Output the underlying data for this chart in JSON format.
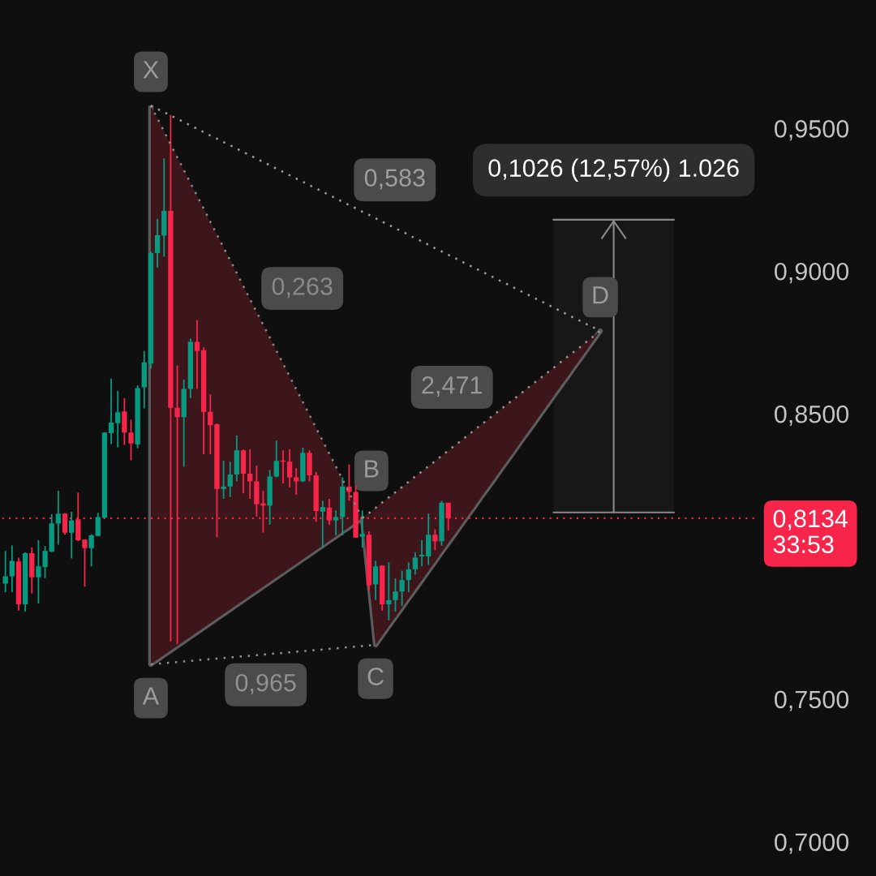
{
  "chart_data": {
    "type": "candlestick",
    "categories": [
      null,
      null,
      null,
      null,
      null,
      null,
      null,
      null,
      null,
      null,
      null,
      null,
      null,
      null,
      null,
      null,
      null,
      null,
      null,
      null,
      null,
      null,
      null,
      null,
      null,
      null,
      null,
      null,
      null,
      null,
      null,
      null,
      null,
      null,
      null,
      null,
      null,
      null,
      null,
      null,
      null,
      null,
      null,
      null,
      null,
      null,
      null,
      null,
      null,
      null,
      null,
      null,
      null,
      null,
      null,
      null,
      null,
      null,
      null,
      null,
      null,
      null,
      null,
      null,
      null,
      null,
      null,
      null,
      null,
      null,
      null,
      null,
      null,
      null,
      null,
      null,
      null,
      null,
      null,
      null,
      null,
      null,
      null,
      null,
      null,
      null,
      null,
      null,
      null,
      null,
      null,
      null,
      null,
      null,
      null,
      null,
      null,
      null,
      null,
      null,
      null,
      null,
      null,
      null,
      null,
      null,
      null,
      null,
      null,
      null,
      null,
      null,
      null,
      null
    ],
    "ohlc": [
      [
        0.7905,
        0.8019,
        0.7875,
        0.793
      ],
      [
        0.793,
        0.8039,
        0.7875,
        0.7984
      ],
      [
        0.7982,
        0.7996,
        0.781,
        0.7832
      ],
      [
        0.7832,
        0.8014,
        0.7807,
        0.8011
      ],
      [
        0.8011,
        0.8031,
        0.787,
        0.7927
      ],
      [
        0.7927,
        0.8057,
        0.7835,
        0.7965
      ],
      [
        0.7963,
        0.8036,
        0.7924,
        0.8019
      ],
      [
        0.8017,
        0.8148,
        0.8015,
        0.8116
      ],
      [
        0.8115,
        0.823,
        0.8041,
        0.815
      ],
      [
        0.815,
        0.8152,
        0.8076,
        0.8083
      ],
      [
        0.8083,
        0.8156,
        0.7993,
        0.8126
      ],
      [
        0.813,
        0.8224,
        0.8053,
        0.8057
      ],
      [
        0.8059,
        0.8059,
        0.7894,
        0.8029
      ],
      [
        0.8029,
        0.8078,
        0.7965,
        0.8074
      ],
      [
        0.8072,
        0.8153,
        0.8072,
        0.8138
      ],
      [
        0.8136,
        0.8435,
        0.8134,
        0.8434
      ],
      [
        0.8432,
        0.8623,
        0.8394,
        0.8469
      ],
      [
        0.8467,
        0.858,
        0.8382,
        0.8505
      ],
      [
        0.8508,
        0.8554,
        0.8391,
        0.8434
      ],
      [
        0.8434,
        0.8479,
        0.8337,
        0.8396
      ],
      [
        0.8393,
        0.86,
        0.8379,
        0.859
      ],
      [
        0.8593,
        0.872,
        0.8519,
        0.868
      ],
      [
        0.8676,
        0.9069,
        0.8657,
        0.9063
      ],
      [
        0.9063,
        0.9183,
        0.9012,
        0.9126
      ],
      [
        0.9124,
        0.9395,
        0.905,
        0.9211
      ],
      [
        0.9211,
        0.9547,
        0.7702,
        0.8521
      ],
      [
        0.8521,
        0.8669,
        0.7693,
        0.8488
      ],
      [
        0.8488,
        0.8619,
        0.8314,
        0.8587
      ],
      [
        0.8587,
        0.8764,
        0.8555,
        0.8752
      ],
      [
        0.8752,
        0.8828,
        0.8587,
        0.872
      ],
      [
        0.8723,
        0.8733,
        0.8358,
        0.8507
      ],
      [
        0.8507,
        0.8568,
        0.8358,
        0.846
      ],
      [
        0.8463,
        0.8466,
        0.8067,
        0.8236
      ],
      [
        0.8236,
        0.8335,
        0.8202,
        0.8245
      ],
      [
        0.8245,
        0.8332,
        0.8208,
        0.8287
      ],
      [
        0.8287,
        0.8424,
        0.8263,
        0.8372
      ],
      [
        0.8372,
        0.8375,
        0.8221,
        0.829
      ],
      [
        0.829,
        0.8375,
        0.8202,
        0.8263
      ],
      [
        0.8263,
        0.8318,
        0.814,
        0.8183
      ],
      [
        0.8186,
        0.823,
        0.8083,
        0.8178
      ],
      [
        0.8178,
        0.8303,
        0.8111,
        0.828
      ],
      [
        0.828,
        0.8406,
        0.8277,
        0.8335
      ],
      [
        0.8336,
        0.8372,
        0.8256,
        0.8332
      ],
      [
        0.8332,
        0.8375,
        0.8242,
        0.8277
      ],
      [
        0.8277,
        0.8309,
        0.8216,
        0.8263
      ],
      [
        0.8263,
        0.8381,
        0.8261,
        0.8363
      ],
      [
        0.8363,
        0.8372,
        0.8263,
        0.8284
      ],
      [
        0.8284,
        0.8296,
        0.8121,
        0.8159
      ],
      [
        0.8157,
        0.8195,
        0.8031,
        0.8173
      ],
      [
        0.8171,
        0.8202,
        0.8111,
        0.8126
      ],
      [
        0.8126,
        0.8161,
        0.8074,
        0.8138
      ],
      [
        0.8138,
        0.8277,
        0.8074,
        0.8245
      ],
      [
        0.8245,
        0.8322,
        0.8195,
        0.8226
      ],
      [
        0.8226,
        0.8249,
        0.8066,
        0.8066
      ],
      [
        0.8069,
        0.8161,
        0.8031,
        0.8079
      ],
      [
        0.8076,
        0.8088,
        0.788,
        0.7899
      ],
      [
        0.7902,
        0.7984,
        0.7847,
        0.7965
      ],
      [
        0.7968,
        0.7968,
        0.781,
        0.7832
      ],
      [
        0.7832,
        0.7979,
        0.7776,
        0.7847
      ],
      [
        0.7847,
        0.7923,
        0.7806,
        0.7877
      ],
      [
        0.7877,
        0.795,
        0.7826,
        0.7917
      ],
      [
        0.7917,
        0.7979,
        0.7875,
        0.7955
      ],
      [
        0.7955,
        0.8015,
        0.7936,
        0.7996
      ],
      [
        0.8,
        0.8057,
        0.7965,
        0.8006
      ],
      [
        0.8,
        0.815,
        0.797,
        0.8076
      ],
      [
        0.8076,
        0.8095,
        0.8022,
        0.8053
      ],
      [
        0.8053,
        0.8195,
        0.8038,
        0.8188
      ],
      [
        0.8188,
        0.8188,
        0.8091,
        0.8134
      ],
      null,
      null,
      null,
      null,
      null,
      null,
      null,
      null,
      null,
      null,
      null,
      null,
      null,
      null,
      null,
      null,
      null,
      null,
      null,
      null,
      null,
      null,
      null,
      null,
      null,
      null,
      null,
      null,
      null,
      null,
      null,
      null,
      null,
      null,
      null,
      null,
      null,
      null,
      null,
      null,
      null,
      null,
      null,
      null,
      null,
      null
    ],
    "colors": [
      "#089981",
      "#089981",
      "#f7254a",
      "#089981",
      "#f7254a",
      "#089981",
      "#089981",
      "#089981",
      "#089981",
      "#f7254a",
      "#089981",
      "#f7254a",
      "#f7254a",
      "#089981",
      "#089981",
      "#089981",
      "#089981",
      "#089981",
      "#f7254a",
      "#f7254a",
      "#089981",
      "#089981",
      "#089981",
      "#089981",
      "#089981",
      "#f7254a",
      "#f7254a",
      "#089981",
      "#089981",
      "#f7254a",
      "#f7254a",
      "#f7254a",
      "#f7254a",
      "#089981",
      "#089981",
      "#089981",
      "#f7254a",
      "#f7254a",
      "#f7254a",
      "#f7254a",
      "#089981",
      "#089981",
      "#f7254a",
      "#f7254a",
      "#f7254a",
      "#089981",
      "#f7254a",
      "#f7254a",
      "#089981",
      "#f7254a",
      "#089981",
      "#089981",
      "#f7254a",
      "#f7254a",
      "#089981",
      "#f7254a",
      "#089981",
      "#f7254a",
      "#089981",
      "#089981",
      "#089981",
      "#089981",
      "#089981",
      "#089981",
      "#089981",
      "#f7254a",
      "#089981",
      "#f7254a",
      null,
      null,
      null,
      null,
      null,
      null,
      null,
      null,
      null,
      null,
      null,
      null,
      null,
      null,
      null,
      null,
      null,
      null,
      null,
      null,
      null,
      null,
      null,
      null,
      null,
      null,
      null,
      null,
      null,
      null,
      null,
      null,
      null,
      null,
      null,
      null,
      null,
      null,
      null,
      null,
      null,
      null,
      null,
      null,
      null,
      null
    ],
    "series": [
      {
        "type": "bar",
        "color": "#5c5c5c",
        "base": [
          null,
          null,
          null,
          null,
          null,
          null,
          null,
          null,
          null,
          null,
          null,
          null,
          null,
          null,
          null,
          null,
          null,
          null,
          null,
          null,
          null,
          null,
          0.7622,
          null,
          null,
          null,
          null,
          null,
          null,
          null,
          null,
          null,
          null,
          null,
          null,
          null,
          null,
          null,
          null,
          null,
          null,
          null,
          null,
          null,
          null,
          null,
          null,
          null,
          null,
          null,
          null,
          null,
          null,
          null,
          null,
          null,
          null,
          null,
          null,
          null,
          null,
          null,
          null,
          null,
          null,
          null,
          null,
          null,
          null,
          null,
          null,
          null,
          null,
          null,
          null,
          null,
          null,
          null,
          null,
          null,
          null,
          null,
          null,
          null,
          null,
          null,
          null,
          null,
          null,
          null,
          null,
          null,
          null,
          null,
          null,
          null,
          null,
          null,
          null,
          null,
          null,
          null,
          null,
          null,
          null,
          null,
          null,
          null,
          null,
          null,
          null,
          null,
          null,
          null
        ],
        "values": [
          null,
          null,
          null,
          null,
          null,
          null,
          null,
          null,
          null,
          null,
          null,
          null,
          null,
          null,
          null,
          null,
          null,
          null,
          null,
          null,
          null,
          null,
          0.1958,
          null,
          null,
          null,
          null,
          null,
          null,
          null,
          null,
          null,
          null,
          null,
          null,
          null,
          null,
          null,
          null,
          null,
          null,
          null,
          null,
          null,
          null,
          null,
          null,
          null,
          null,
          null,
          null,
          null,
          null,
          null,
          null,
          null,
          null,
          null,
          null,
          null,
          null,
          null,
          null,
          null,
          null,
          null,
          null,
          null,
          null,
          null,
          null,
          null,
          null,
          null,
          null,
          null,
          null,
          null,
          null,
          null,
          null,
          null,
          null,
          null,
          null,
          null,
          null,
          null,
          null,
          null,
          null,
          null,
          null,
          null,
          null,
          null,
          null,
          null,
          null,
          null,
          null,
          null,
          null,
          null,
          null,
          null,
          null,
          null,
          null,
          null,
          null,
          null,
          null,
          null
        ],
        "value_labels": [
          null,
          null,
          null,
          null,
          null,
          null,
          null,
          null,
          null,
          null,
          null,
          null,
          null,
          null,
          null,
          null,
          null,
          null,
          null,
          null,
          null,
          null,
          "X",
          null,
          null,
          null,
          null,
          null,
          null,
          null,
          null,
          null,
          null,
          null,
          null,
          null,
          null,
          null,
          null,
          null,
          null,
          null,
          null,
          null,
          null,
          null,
          null,
          null,
          null,
          null,
          null,
          null,
          null,
          null,
          null,
          null,
          null,
          null,
          null,
          null,
          null,
          null,
          null,
          null,
          null,
          null,
          null,
          null,
          null,
          null,
          null,
          null,
          null,
          null,
          null,
          null,
          null,
          null,
          null,
          null,
          null,
          null,
          null,
          null,
          null,
          null,
          null,
          null,
          null,
          null,
          null,
          null,
          null,
          null,
          null,
          null,
          null,
          null,
          null,
          null,
          null,
          null,
          null,
          null,
          null,
          null,
          null,
          null,
          null,
          null,
          null,
          null,
          null,
          null
        ]
      },
      {
        "type": "line",
        "name": "0,263",
        "color": "#8a8a8a",
        "line_style": "dotted",
        "values": [
          null,
          null,
          null,
          null,
          null,
          null,
          null,
          null,
          null,
          null,
          null,
          null,
          null,
          null,
          null,
          null,
          null,
          null,
          null,
          null,
          null,
          null,
          0.958,
          0.9535,
          0.949,
          0.9444,
          0.9399,
          0.9354,
          0.9309,
          0.9264,
          0.9219,
          0.9173,
          0.9128,
          0.9083,
          0.9038,
          0.8993,
          0.8947,
          0.8902,
          0.8857,
          0.8812,
          0.8767,
          0.8721,
          0.8676,
          0.8631,
          0.8586,
          0.8541,
          0.8496,
          0.845,
          0.8405,
          0.836,
          0.8315,
          0.827,
          0.8224,
          0.8179,
          0.8134,
          null,
          null,
          null,
          null,
          null,
          null,
          null,
          null,
          null,
          null,
          null,
          null,
          null,
          null,
          null,
          null,
          null,
          null,
          null,
          null,
          null,
          null,
          null,
          null,
          null,
          null,
          null,
          null,
          null,
          null,
          null,
          null,
          null,
          null,
          null,
          null,
          null,
          null,
          null,
          null,
          null,
          null,
          null,
          null,
          null,
          null,
          null,
          null,
          null,
          null,
          null,
          null,
          null,
          null,
          null,
          null,
          null,
          null,
          null
        ],
        "upper": [
          null,
          null,
          null,
          null,
          null,
          null,
          null,
          null,
          null,
          null,
          null,
          null,
          null,
          null,
          null,
          null,
          null,
          null,
          null,
          null,
          null,
          null,
          0.958,
          0.9535,
          0.949,
          0.9444,
          0.9399,
          0.9354,
          0.9309,
          0.9264,
          0.9219,
          0.9173,
          0.9128,
          0.9083,
          0.9038,
          0.8993,
          0.8947,
          0.8902,
          0.8857,
          0.8812,
          0.8767,
          0.8721,
          0.8676,
          0.8631,
          0.8586,
          0.8541,
          0.8496,
          0.845,
          0.8405,
          0.836,
          0.8315,
          0.827,
          0.8224,
          0.8179,
          0.8134,
          null,
          null,
          null,
          null,
          null,
          null,
          null,
          null,
          null,
          null,
          null,
          null,
          null,
          null,
          null,
          null,
          null,
          null,
          null,
          null,
          null,
          null,
          null,
          null,
          null,
          null,
          null,
          null,
          null,
          null,
          null,
          null,
          null,
          null,
          null,
          null,
          null,
          null,
          null,
          null,
          null,
          null,
          null,
          null,
          null,
          null,
          null,
          null,
          null,
          null,
          null,
          null,
          null,
          null,
          null,
          null,
          null,
          null,
          null
        ],
        "lower": [
          null,
          null,
          null,
          null,
          null,
          null,
          null,
          null,
          null,
          null,
          null,
          null,
          null,
          null,
          null,
          null,
          null,
          null,
          null,
          null,
          null,
          null,
          0.7622,
          0.7638,
          0.7654,
          0.767,
          0.7686,
          0.7702,
          0.7718,
          0.7734,
          0.775,
          0.7766,
          0.7782,
          0.7798,
          0.7814,
          0.783,
          0.7846,
          0.7862,
          0.7878,
          0.7894,
          0.791,
          0.7926,
          0.7942,
          0.7958,
          0.7974,
          0.799,
          0.8006,
          0.8022,
          0.8038,
          0.8054,
          0.807,
          0.8086,
          0.8102,
          0.8118,
          0.8134,
          null,
          null,
          null,
          null,
          null,
          null,
          null,
          null,
          null,
          null,
          null,
          null,
          null,
          null,
          null,
          null,
          null,
          null,
          null,
          null,
          null,
          null,
          null,
          null,
          null,
          null,
          null,
          null,
          null,
          null,
          null,
          null,
          null,
          null,
          null,
          null,
          null,
          null,
          null,
          null,
          null,
          null,
          null,
          null,
          null,
          null,
          null,
          null,
          null,
          null,
          null,
          null,
          null,
          null,
          null,
          null,
          null,
          null,
          null
        ]
      },
      {
        "type": "line",
        "name": "0,965",
        "color": "#919191",
        "line_style": "dotted",
        "values": [
          null,
          null,
          null,
          null,
          null,
          null,
          null,
          null,
          null,
          null,
          null,
          null,
          null,
          null,
          null,
          null,
          null,
          null,
          null,
          null,
          null,
          null,
          0.7622,
          0.7624,
          0.7626,
          0.7628,
          0.763,
          0.7632,
          0.7634,
          0.7636,
          0.7638,
          0.764,
          0.7642,
          0.7644,
          0.7646,
          0.7648,
          0.765,
          0.7652,
          0.7654,
          0.7656,
          0.7658,
          0.766,
          0.7662,
          0.7664,
          0.7666,
          0.7668,
          0.767,
          0.7672,
          0.7674,
          0.7676,
          0.7678,
          0.768,
          0.7682,
          0.7684,
          0.7686,
          0.7688,
          0.769,
          null,
          null,
          null,
          null,
          null,
          null,
          null,
          null,
          null,
          null,
          null,
          null,
          null,
          null,
          null,
          null,
          null,
          null,
          null,
          null,
          null,
          null,
          null,
          null,
          null,
          null,
          null,
          null,
          null,
          null,
          null,
          null,
          null,
          null,
          null,
          null,
          null,
          null,
          null,
          null,
          null,
          null,
          null,
          null,
          null,
          null,
          null,
          null,
          null,
          null,
          null,
          null,
          null,
          null,
          null,
          null,
          null
        ]
      },
      {
        "type": "line",
        "name": "2,471",
        "color": "#989898",
        "line_style": "dotted",
        "values": [
          null,
          null,
          null,
          null,
          null,
          null,
          null,
          null,
          null,
          null,
          null,
          null,
          null,
          null,
          null,
          null,
          null,
          null,
          null,
          null,
          null,
          null,
          null,
          null,
          null,
          null,
          null,
          null,
          null,
          null,
          null,
          null,
          null,
          null,
          null,
          null,
          null,
          null,
          null,
          null,
          null,
          null,
          null,
          null,
          null,
          null,
          null,
          null,
          null,
          null,
          null,
          null,
          null,
          null,
          0.8134,
          0.8152,
          0.817,
          0.8189,
          0.8207,
          0.8225,
          0.8243,
          0.8262,
          0.828,
          0.8298,
          0.8316,
          0.8334,
          0.8353,
          0.8371,
          0.8389,
          0.8407,
          0.8426,
          0.8444,
          0.8462,
          0.848,
          0.8498,
          0.8517,
          0.8535,
          0.8553,
          0.8571,
          0.859,
          0.8608,
          0.8626,
          0.8644,
          0.8662,
          0.8681,
          0.8699,
          0.8717,
          0.8735,
          0.8754,
          0.8772,
          0.879,
          null,
          null,
          null,
          null,
          null,
          null,
          null,
          null,
          null,
          null,
          null,
          null,
          null,
          null,
          null,
          null,
          null,
          null,
          null,
          null,
          null,
          null,
          null
        ],
        "upper": [
          null,
          null,
          null,
          null,
          null,
          null,
          null,
          null,
          null,
          null,
          null,
          null,
          null,
          null,
          null,
          null,
          null,
          null,
          null,
          null,
          null,
          null,
          null,
          null,
          null,
          null,
          null,
          null,
          null,
          null,
          null,
          null,
          null,
          null,
          null,
          null,
          null,
          null,
          null,
          null,
          null,
          null,
          null,
          null,
          null,
          null,
          null,
          null,
          null,
          null,
          null,
          null,
          null,
          null,
          0.8134,
          0.8152,
          0.817,
          0.8189,
          0.8207,
          0.8225,
          0.8243,
          0.8262,
          0.828,
          0.8298,
          0.8316,
          0.8334,
          0.8353,
          0.8371,
          0.8389,
          0.8407,
          0.8426,
          0.8444,
          0.8462,
          0.848,
          0.8498,
          0.8517,
          0.8535,
          0.8553,
          0.8571,
          0.859,
          0.8608,
          0.8626,
          0.8644,
          0.8662,
          0.8681,
          0.8699,
          0.8717,
          0.8735,
          0.8754,
          0.8772,
          0.879,
          null,
          null,
          null,
          null,
          null,
          null,
          null,
          null,
          null,
          null,
          null,
          null,
          null,
          null,
          null,
          null,
          null,
          null,
          null,
          null,
          null,
          null,
          null
        ],
        "lower": [
          null,
          null,
          null,
          null,
          null,
          null,
          null,
          null,
          null,
          null,
          null,
          null,
          null,
          null,
          null,
          null,
          null,
          null,
          null,
          null,
          null,
          null,
          null,
          null,
          null,
          null,
          null,
          null,
          null,
          null,
          null,
          null,
          null,
          null,
          null,
          null,
          null,
          null,
          null,
          null,
          null,
          null,
          null,
          null,
          null,
          null,
          null,
          null,
          null,
          null,
          null,
          null,
          null,
          null,
          0.8134,
          0.7912,
          0.769,
          0.7722,
          0.7755,
          0.7787,
          0.7819,
          0.7852,
          0.7884,
          0.7916,
          0.7949,
          0.7981,
          0.8014,
          0.8046,
          0.8078,
          0.8111,
          0.8143,
          0.8175,
          0.8208,
          0.824,
          0.8272,
          0.8305,
          0.8337,
          0.8369,
          0.8402,
          0.8434,
          0.8466,
          0.8499,
          0.8531,
          0.8564,
          0.8596,
          0.8628,
          0.8661,
          0.8693,
          0.8725,
          0.8758,
          0.879,
          null,
          null,
          null,
          null,
          null,
          null,
          null,
          null,
          null,
          null,
          null,
          null,
          null,
          null,
          null,
          null,
          null,
          null,
          null,
          null,
          null,
          null,
          null
        ]
      },
      {
        "type": "line",
        "name": "0,583",
        "color": "#9f9f9f",
        "line_style": "dotted",
        "values": [
          null,
          null,
          null,
          null,
          null,
          null,
          null,
          null,
          null,
          null,
          null,
          null,
          null,
          null,
          null,
          null,
          null,
          null,
          null,
          null,
          null,
          null,
          0.958,
          0.9568,
          0.9557,
          0.9545,
          0.9534,
          0.9522,
          0.951,
          0.9499,
          0.9487,
          0.9475,
          0.9464,
          0.9452,
          0.9441,
          0.9429,
          0.9417,
          0.9406,
          0.9394,
          0.9382,
          0.9371,
          0.9359,
          0.9348,
          0.9336,
          0.9324,
          0.9313,
          0.9301,
          0.929,
          0.9278,
          0.9266,
          0.9255,
          0.9243,
          0.9231,
          0.922,
          0.9208,
          0.9197,
          0.9185,
          0.9173,
          0.9162,
          0.915,
          0.9139,
          0.9127,
          0.9115,
          0.9104,
          0.9092,
          0.908,
          0.9069,
          0.9057,
          0.9046,
          0.9034,
          0.9022,
          0.9011,
          0.8999,
          0.8988,
          0.8976,
          0.8964,
          0.8953,
          0.8941,
          0.8929,
          0.8918,
          0.8906,
          0.8895,
          0.8883,
          0.8871,
          0.886,
          0.8848,
          0.8836,
          0.8825,
          0.8813,
          0.8802,
          0.879,
          null,
          null,
          null,
          null,
          null,
          null,
          null,
          null,
          null,
          null,
          null,
          null,
          null,
          null,
          null,
          null,
          null,
          null,
          null,
          null,
          null,
          null,
          null
        ]
      },
      {
        "type": "line",
        "color": "#5c5c5c",
        "line_style": "solid",
        "values": [
          null,
          null,
          null,
          null,
          null,
          null,
          null,
          null,
          null,
          null,
          null,
          null,
          null,
          null,
          null,
          null,
          null,
          null,
          null,
          null,
          null,
          null,
          0.7622,
          0.7638,
          0.7654,
          0.767,
          0.7686,
          0.7702,
          0.7718,
          0.7734,
          0.775,
          0.7766,
          0.7782,
          0.7798,
          0.7814,
          0.783,
          0.7846,
          0.7862,
          0.7878,
          0.7894,
          0.791,
          0.7926,
          0.7942,
          0.7958,
          0.7974,
          0.799,
          0.8006,
          0.8022,
          0.8038,
          0.8054,
          0.807,
          0.8086,
          0.8102,
          0.8118,
          0.8134,
          0.7912,
          0.769,
          0.7722,
          0.7755,
          0.7787,
          0.7819,
          0.7852,
          0.7884,
          0.7916,
          0.7949,
          0.7981,
          0.8014,
          0.8046,
          0.8078,
          0.8111,
          0.8143,
          0.8175,
          0.8208,
          0.824,
          0.8272,
          0.8305,
          0.8337,
          0.8369,
          0.8402,
          0.8434,
          0.8466,
          0.8499,
          0.8531,
          0.8564,
          0.8596,
          0.8628,
          0.8661,
          0.8693,
          0.8725,
          0.8758,
          0.879,
          null,
          null,
          null,
          null,
          null,
          null,
          null,
          null,
          null,
          null,
          null,
          null,
          null,
          null,
          null,
          null,
          null,
          null,
          null,
          null,
          null,
          null,
          null
        ],
        "value_labels": [
          null,
          null,
          null,
          null,
          null,
          null,
          null,
          null,
          null,
          null,
          null,
          null,
          null,
          null,
          null,
          null,
          null,
          null,
          null,
          null,
          null,
          null,
          "A",
          null,
          null,
          null,
          null,
          null,
          null,
          null,
          null,
          null,
          null,
          null,
          null,
          null,
          null,
          null,
          null,
          null,
          null,
          null,
          null,
          null,
          null,
          null,
          null,
          null,
          null,
          null,
          null,
          null,
          null,
          null,
          "B",
          null,
          "C",
          null,
          null,
          null,
          null,
          null,
          null,
          null,
          null,
          null,
          null,
          null,
          null,
          null,
          null,
          null,
          null,
          null,
          null,
          null,
          null,
          null,
          null,
          null,
          null,
          null,
          null,
          null,
          null,
          null,
          null,
          null,
          null,
          null,
          "D",
          null,
          null,
          null,
          null,
          null,
          null,
          null,
          null,
          null,
          null,
          null,
          null,
          null,
          null,
          null,
          null,
          null,
          null,
          null,
          null,
          null,
          null,
          null
        ]
      }
    ],
    "bands": [
      {
        "axis": "y",
        "from": 0.8154,
        "to": 0.918,
        "label": "0,1026 (12,57%) 1.026",
        "color": "#171717"
      }
    ],
    "ref_lines": [
      {
        "axis": "y",
        "value": 0.8134,
        "label": "0,8134\n33:53",
        "color": "#f7254a",
        "line_style": "dotted"
      }
    ],
    "ylim": [
      0.688,
      0.995
    ],
    "yticks": [
      {
        "value": 0.95,
        "label": "0,9500"
      },
      {
        "value": 0.9,
        "label": "0,9000"
      },
      {
        "value": 0.85,
        "label": "0,8500"
      },
      {
        "value": 0.75,
        "label": "0,7500"
      },
      {
        "value": 0.7,
        "label": "0,7000"
      }
    ],
    "tick_labels": "y"
  }
}
